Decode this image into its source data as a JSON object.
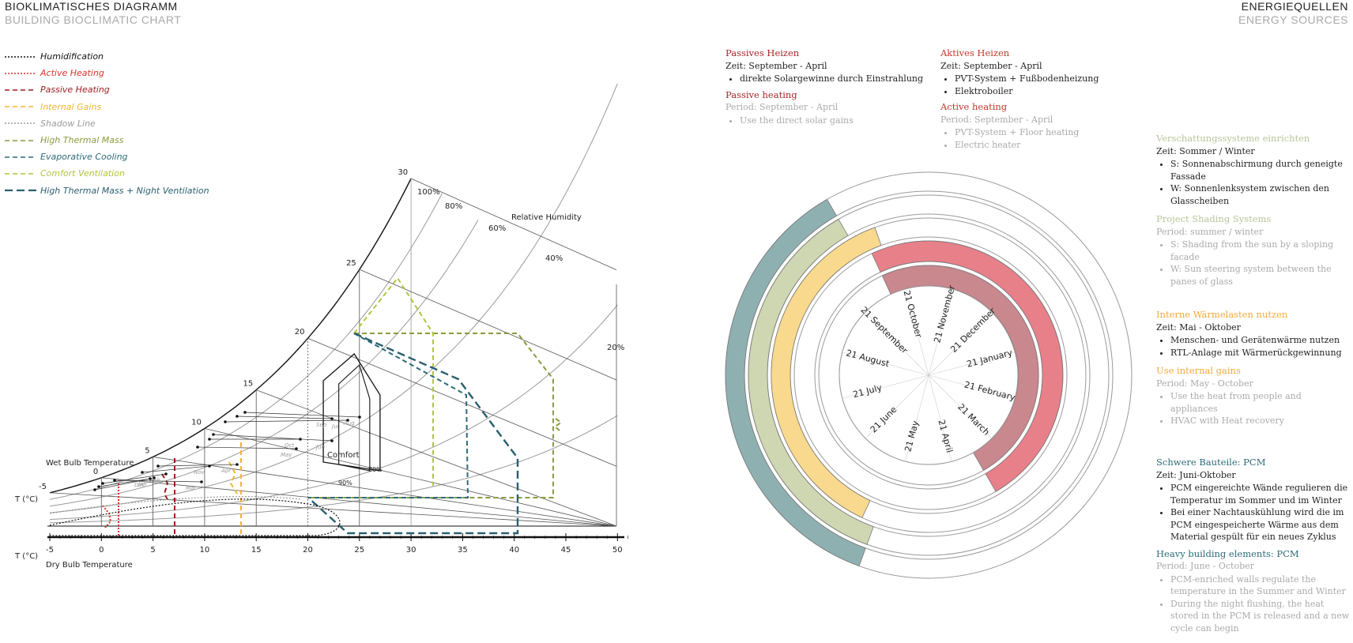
{
  "header": {
    "left_title": "BIOKLIMATISCHES DIAGRAMM",
    "left_subtitle": "BUILDING BIOCLIMATIC CHART",
    "right_title": "ENERGIEQUELLEN",
    "right_subtitle": "ENERGY SOURCES"
  },
  "legend": [
    {
      "label": "Humidification",
      "color": "#111111",
      "style": "dotted"
    },
    {
      "label": "Active Heating",
      "color": "#d9332b",
      "style": "dotted"
    },
    {
      "label": "Passive Heating",
      "color": "#9b1b1b",
      "style": "dashed"
    },
    {
      "label": "Internal Gains",
      "color": "#f3b52f",
      "style": "dashed"
    },
    {
      "label": "Shadow Line",
      "color": "#9a9a9a",
      "style": "dotted"
    },
    {
      "label": "High Thermal Mass",
      "color": "#8b9a3c",
      "style": "dashed"
    },
    {
      "label": "Evaporative Cooling",
      "color": "#2c6b77",
      "style": "dashed"
    },
    {
      "label": "Comfort Ventilation",
      "color": "#b4c43c",
      "style": "dashed"
    },
    {
      "label": "High Thermal Mass + Night Ventilation",
      "color": "#2a5f6e",
      "style": "longdash"
    }
  ],
  "chart": {
    "wet_bulb_label": "Wet Bulb Temperature",
    "dry_bulb_label": "Dry Bulb Temperature",
    "t_label_top": "T (°C)",
    "t_label_bottom": "T (°C)",
    "relative_humidity_label": "Relative Humidity",
    "comfort_label": "Comfort",
    "x_ticks": [
      "-5",
      "0",
      "5",
      "10",
      "15",
      "20",
      "25",
      "30",
      "35",
      "40",
      "45",
      "50"
    ],
    "wet_bulb_ticks": [
      "-5",
      "0",
      "5",
      "10",
      "15",
      "20",
      "25",
      "30"
    ],
    "rh_labels": [
      "100%",
      "80%",
      "60%",
      "40%",
      "20%"
    ],
    "comfort_rh_labels": [
      "90%",
      "80%"
    ],
    "months": [
      "Jan",
      "Feb",
      "Mar",
      "Apr",
      "May",
      "Jun",
      "Jul",
      "Aug",
      "Sep",
      "Oct",
      "Nov",
      "Dec"
    ]
  },
  "blocks": {
    "passive_de": {
      "title": "Passives Heizen",
      "period": "Zeit: September - April",
      "items": [
        "direkte Solargewinne durch Einstrahlung"
      ]
    },
    "passive_en": {
      "title": "Passive heating",
      "period": "Period: September - April",
      "items": [
        "Use the direct solar gains"
      ]
    },
    "active_de": {
      "title": "Aktives Heizen",
      "period": "Zeit: September - April",
      "items": [
        "PVT-System + Fußbodenheizung",
        "Elektroboiler"
      ]
    },
    "active_en": {
      "title": "Active heating",
      "period": "Period: September - April",
      "items": [
        "PVT-System + Floor heating",
        "Electric heater"
      ]
    },
    "shading_de": {
      "title": "Verschattungssysteme einrichten",
      "period": "Zeit: Sommer / Winter",
      "items": [
        "S: Sonnenabschirmung durch geneigte Fassade",
        "W: Sonnenlenksystem zwischen den Glasscheiben"
      ]
    },
    "shading_en": {
      "title": "Project Shading Systems",
      "period": "Period: summer / winter",
      "items": [
        "S: Shading from the sun by a sloping facade",
        "W: Sun steering system between the panes of glass"
      ]
    },
    "internal_de": {
      "title": "Interne Wärmelasten nutzen",
      "period": "Zeit: Mai - Oktober",
      "items": [
        "Menschen- und Gerätenwärme nutzen",
        "RTL-Anlage mit Wärmerückgewinnung"
      ]
    },
    "internal_en": {
      "title": "Use internal gains",
      "period": "Period: May - October",
      "items": [
        "Use the heat from people and appliances",
        "HVAC with Heat recovery"
      ]
    },
    "pcm_de": {
      "title": "Schwere Bauteile: PCM",
      "period": "Zeit: Juni-Oktober",
      "items": [
        "PCM eingereichte Wände regulieren die Temperatur im Sommer und im Winter",
        "Bei einer Nachtauskühlung wird die im PCM eingespeicherte Wärme aus dem Material gespült für ein neues Zyklus"
      ]
    },
    "pcm_en": {
      "title": "Heavy building elements: PCM",
      "period": "Period: June - October",
      "items": [
        "PCM-enriched walls regulate the temperature in the Summer and Winter",
        "During the night flushing, the heat stored in the PCM is released and a new cycle can begin"
      ]
    }
  },
  "wheel": {
    "month_labels": [
      "21 October",
      "21 November",
      "21 December",
      "21 January",
      "21 February",
      "21 March",
      "21 April",
      "21 May",
      "21 June",
      "21 July",
      "21 August",
      "21 September"
    ],
    "rings": [
      {
        "name": "Schwere Bauteile PCM",
        "color": "#8fb0b1",
        "start_month": "21 June",
        "end_month": "21 October"
      },
      {
        "name": "Verschattungssysteme",
        "color": "#cfd7b2",
        "start_month": "21 June",
        "end_month": "21 October"
      },
      {
        "name": "Interne Wärmelasten",
        "color": "#f9d98d",
        "start_month": "21 May",
        "end_month": "21 October"
      },
      {
        "name": "Aktives Heizen",
        "color": "#e8808a",
        "start_month": "21 September",
        "end_month": "21 April"
      },
      {
        "name": "Passives Heizen",
        "color": "#c9878e",
        "start_month": "21 September",
        "end_month": "21 April"
      }
    ]
  },
  "colors": {
    "passive_title": "#a5282b",
    "active_title": "#c0392b",
    "shading_title": "#b6c69a",
    "internal_title": "#f0a93a",
    "pcm_title": "#2c6b77"
  }
}
